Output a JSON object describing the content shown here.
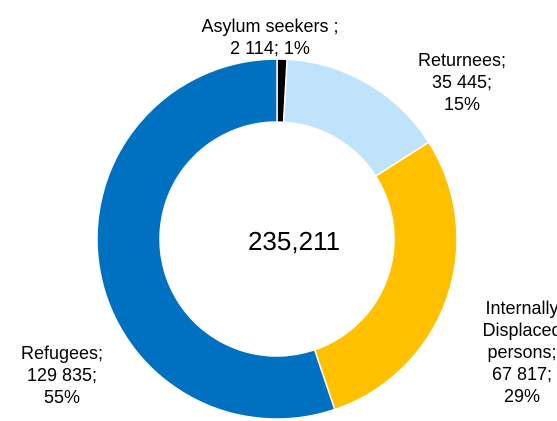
{
  "chart_data": {
    "type": "pie",
    "variant": "donut",
    "center_label": "235,211",
    "slices": [
      {
        "name": "Asylum seekers",
        "value": 2114,
        "percent": 1,
        "color": "#000000",
        "label_lines": [
          "Asylum seekers ;",
          "2 114; 1%"
        ]
      },
      {
        "name": "Returnees",
        "value": 35445,
        "percent": 15,
        "color": "#bfe3fb",
        "label_lines": [
          "Returnees;",
          "35 445;",
          "15%"
        ]
      },
      {
        "name": "Internally Displaced persons",
        "value": 67817,
        "percent": 29,
        "color": "#ffc000",
        "label_lines": [
          "Internally",
          "Displaced",
          "persons;",
          "67 817;",
          "29%"
        ]
      },
      {
        "name": "Refugees",
        "value": 129835,
        "percent": 55,
        "color": "#0070c0",
        "label_lines": [
          "Refugees;",
          "129 835;",
          "55%"
        ]
      }
    ],
    "legend": "none"
  }
}
